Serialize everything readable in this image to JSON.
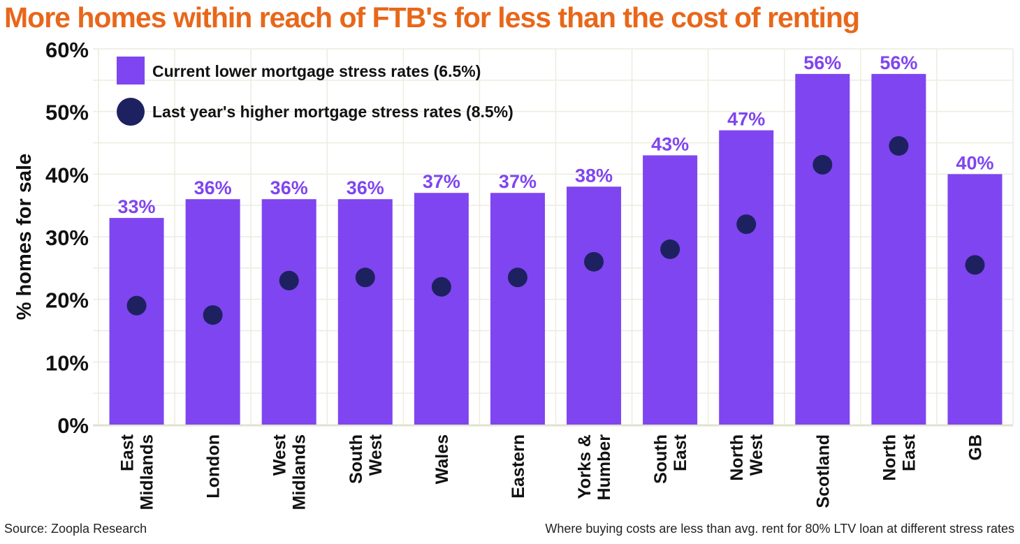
{
  "chart_data": {
    "type": "bar",
    "title": "More homes within reach of FTB's for less than the cost of renting",
    "ylabel": "% homes for sale",
    "xlabel": "",
    "ylim": [
      0,
      60
    ],
    "yticks": [
      "0%",
      "10%",
      "20%",
      "30%",
      "40%",
      "50%",
      "60%"
    ],
    "grid": true,
    "legend_placement": "top-left",
    "categories": [
      [
        "East",
        "Midlands"
      ],
      [
        "London"
      ],
      [
        "West",
        "Midlands"
      ],
      [
        "South",
        "West"
      ],
      [
        "Wales"
      ],
      [
        "Eastern"
      ],
      [
        "Yorks &",
        "Humber"
      ],
      [
        "South",
        "East"
      ],
      [
        "North",
        "West"
      ],
      [
        "Scotland"
      ],
      [
        "North",
        "East"
      ],
      [
        "GB"
      ]
    ],
    "series": [
      {
        "name": "Current lower mortgage stress rates (6.5%)",
        "type": "bar",
        "color": "#7F45F0",
        "values": [
          33,
          36,
          36,
          36,
          37,
          37,
          38,
          43,
          47,
          56,
          56,
          40
        ],
        "labels": [
          "33%",
          "36%",
          "36%",
          "36%",
          "37%",
          "37%",
          "38%",
          "43%",
          "47%",
          "56%",
          "56%",
          "40%"
        ]
      },
      {
        "name": "Last year's higher mortgage stress rates (8.5%)",
        "type": "scatter",
        "color": "#1E2160",
        "values": [
          19,
          17.5,
          23,
          23.5,
          22,
          23.5,
          26,
          28,
          32,
          41.5,
          44.5,
          25.5
        ]
      }
    ],
    "source": "Source: Zoopla Research",
    "note": "Where buying costs are less than avg. rent for 80% LTV loan at different stress rates"
  }
}
